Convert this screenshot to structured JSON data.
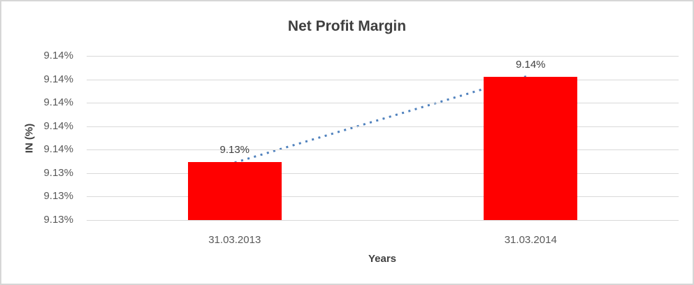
{
  "colors": {
    "bar": "#ff0000",
    "trendline": "#4f81bd",
    "gridline": "#d9d9d9",
    "title_text": "#3f3f3f",
    "tick_text": "#595959"
  },
  "chart_data": {
    "type": "bar",
    "title": "Net Profit Margin",
    "xlabel": "Years",
    "ylabel": "IN (%)",
    "categories": [
      "31.03.2013",
      "31.03.2014"
    ],
    "values": [
      9.1337,
      9.1428
    ],
    "data_labels": [
      "9.13%",
      "9.14%"
    ],
    "ylim": [
      9.1275,
      9.145
    ],
    "y_tick_labels_top_to_bottom": [
      "9.14%",
      "9.14%",
      "9.14%",
      "9.14%",
      "9.14%",
      "9.13%",
      "9.13%",
      "9.13%"
    ],
    "grid": true,
    "legend": "none",
    "bar_color": "#ff0000",
    "trendline": {
      "type": "linear",
      "style": "dotted",
      "color": "#4f81bd",
      "from_category_index": 0,
      "to_category_index": 1
    }
  }
}
